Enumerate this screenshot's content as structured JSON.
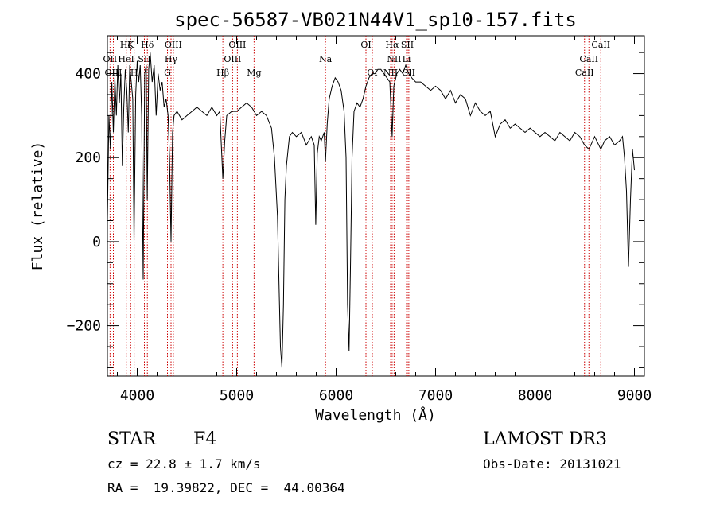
{
  "chart_data": {
    "type": "line",
    "title": "spec-56587-VB021N44V1_sp10-157.fits",
    "xlabel": "Wavelength (Å)",
    "ylabel": "Flux (relative)",
    "xlim": [
      3700,
      9100
    ],
    "ylim": [
      -320,
      490
    ],
    "xticks": [
      4000,
      5000,
      6000,
      7000,
      8000,
      9000
    ],
    "yticks": [
      -200,
      0,
      200,
      400
    ],
    "series": [
      {
        "name": "flux",
        "points": [
          [
            3700,
            50
          ],
          [
            3715,
            300
          ],
          [
            3730,
            220
          ],
          [
            3745,
            380
          ],
          [
            3760,
            260
          ],
          [
            3775,
            390
          ],
          [
            3790,
            300
          ],
          [
            3805,
            420
          ],
          [
            3820,
            330
          ],
          [
            3835,
            400
          ],
          [
            3850,
            180
          ],
          [
            3865,
            320
          ],
          [
            3880,
            410
          ],
          [
            3895,
            360
          ],
          [
            3910,
            260
          ],
          [
            3925,
            420
          ],
          [
            3940,
            380
          ],
          [
            3955,
            340
          ],
          [
            3968,
            0
          ],
          [
            3985,
            350
          ],
          [
            4000,
            430
          ],
          [
            4015,
            380
          ],
          [
            4030,
            420
          ],
          [
            4045,
            300
          ],
          [
            4060,
            -90
          ],
          [
            4075,
            400
          ],
          [
            4090,
            420
          ],
          [
            4101,
            100
          ],
          [
            4115,
            410
          ],
          [
            4130,
            450
          ],
          [
            4150,
            380
          ],
          [
            4170,
            420
          ],
          [
            4190,
            300
          ],
          [
            4210,
            400
          ],
          [
            4230,
            360
          ],
          [
            4250,
            380
          ],
          [
            4270,
            320
          ],
          [
            4290,
            340
          ],
          [
            4310,
            300
          ],
          [
            4325,
            200
          ],
          [
            4340,
            0
          ],
          [
            4355,
            260
          ],
          [
            4370,
            300
          ],
          [
            4400,
            310
          ],
          [
            4450,
            290
          ],
          [
            4500,
            300
          ],
          [
            4550,
            310
          ],
          [
            4600,
            320
          ],
          [
            4650,
            310
          ],
          [
            4700,
            300
          ],
          [
            4750,
            320
          ],
          [
            4800,
            300
          ],
          [
            4830,
            310
          ],
          [
            4861,
            150
          ],
          [
            4880,
            240
          ],
          [
            4900,
            300
          ],
          [
            4950,
            310
          ],
          [
            5000,
            310
          ],
          [
            5050,
            320
          ],
          [
            5100,
            330
          ],
          [
            5150,
            320
          ],
          [
            5200,
            300
          ],
          [
            5250,
            310
          ],
          [
            5300,
            300
          ],
          [
            5350,
            270
          ],
          [
            5380,
            200
          ],
          [
            5410,
            60
          ],
          [
            5440,
            -250
          ],
          [
            5455,
            -300
          ],
          [
            5470,
            -150
          ],
          [
            5485,
            100
          ],
          [
            5500,
            180
          ],
          [
            5530,
            250
          ],
          [
            5560,
            260
          ],
          [
            5600,
            250
          ],
          [
            5650,
            260
          ],
          [
            5700,
            230
          ],
          [
            5750,
            250
          ],
          [
            5780,
            230
          ],
          [
            5795,
            40
          ],
          [
            5810,
            210
          ],
          [
            5830,
            250
          ],
          [
            5850,
            240
          ],
          [
            5880,
            260
          ],
          [
            5893,
            190
          ],
          [
            5910,
            280
          ],
          [
            5930,
            340
          ],
          [
            5960,
            370
          ],
          [
            5990,
            390
          ],
          [
            6020,
            380
          ],
          [
            6050,
            360
          ],
          [
            6080,
            310
          ],
          [
            6100,
            200
          ],
          [
            6115,
            -150
          ],
          [
            6130,
            -260
          ],
          [
            6145,
            -50
          ],
          [
            6160,
            200
          ],
          [
            6180,
            310
          ],
          [
            6210,
            330
          ],
          [
            6240,
            320
          ],
          [
            6270,
            340
          ],
          [
            6300,
            370
          ],
          [
            6330,
            390
          ],
          [
            6360,
            400
          ],
          [
            6390,
            400
          ],
          [
            6420,
            410
          ],
          [
            6450,
            410
          ],
          [
            6480,
            400
          ],
          [
            6510,
            390
          ],
          [
            6540,
            380
          ],
          [
            6563,
            250
          ],
          [
            6580,
            370
          ],
          [
            6610,
            400
          ],
          [
            6640,
            410
          ],
          [
            6670,
            400
          ],
          [
            6700,
            420
          ],
          [
            6730,
            400
          ],
          [
            6760,
            390
          ],
          [
            6800,
            380
          ],
          [
            6850,
            380
          ],
          [
            6900,
            370
          ],
          [
            6950,
            360
          ],
          [
            7000,
            370
          ],
          [
            7050,
            360
          ],
          [
            7100,
            340
          ],
          [
            7150,
            360
          ],
          [
            7200,
            330
          ],
          [
            7250,
            350
          ],
          [
            7300,
            340
          ],
          [
            7350,
            300
          ],
          [
            7400,
            330
          ],
          [
            7450,
            310
          ],
          [
            7500,
            300
          ],
          [
            7550,
            310
          ],
          [
            7600,
            250
          ],
          [
            7650,
            280
          ],
          [
            7700,
            290
          ],
          [
            7750,
            270
          ],
          [
            7800,
            280
          ],
          [
            7850,
            270
          ],
          [
            7900,
            260
          ],
          [
            7950,
            270
          ],
          [
            8000,
            260
          ],
          [
            8050,
            250
          ],
          [
            8100,
            260
          ],
          [
            8150,
            250
          ],
          [
            8200,
            240
          ],
          [
            8250,
            260
          ],
          [
            8300,
            250
          ],
          [
            8350,
            240
          ],
          [
            8400,
            260
          ],
          [
            8450,
            250
          ],
          [
            8498,
            230
          ],
          [
            8542,
            220
          ],
          [
            8600,
            250
          ],
          [
            8662,
            220
          ],
          [
            8700,
            240
          ],
          [
            8750,
            250
          ],
          [
            8800,
            230
          ],
          [
            8850,
            240
          ],
          [
            8880,
            250
          ],
          [
            8900,
            200
          ],
          [
            8920,
            120
          ],
          [
            8940,
            -60
          ],
          [
            8960,
            100
          ],
          [
            8980,
            220
          ],
          [
            9000,
            170
          ]
        ]
      }
    ],
    "lines": [
      {
        "label": "Hζ",
        "x": 3889,
        "row": 0
      },
      {
        "label": "K",
        "x": 3934,
        "row": 0
      },
      {
        "label": "Hδ",
        "x": 4102,
        "row": 0
      },
      {
        "label": "OIII",
        "x": 4363,
        "row": 0
      },
      {
        "label": "OIII",
        "x": 5007,
        "row": 0
      },
      {
        "label": "OI",
        "x": 6300,
        "row": 0
      },
      {
        "label": "Hα",
        "x": 6563,
        "row": 0
      },
      {
        "label": "SII",
        "x": 6716,
        "row": 0
      },
      {
        "label": "CaII",
        "x": 8662,
        "row": 0
      },
      {
        "label": "OII",
        "x": 3727,
        "row": 1
      },
      {
        "label": "HeI",
        "x": 3889,
        "row": 1
      },
      {
        "label": "SII",
        "x": 4072,
        "row": 1
      },
      {
        "label": "Hγ",
        "x": 4340,
        "row": 1
      },
      {
        "label": "OIII",
        "x": 4959,
        "row": 1
      },
      {
        "label": "Na",
        "x": 5893,
        "row": 1
      },
      {
        "label": "NII",
        "x": 6583,
        "row": 1
      },
      {
        "label": "Li",
        "x": 6708,
        "row": 1
      },
      {
        "label": "CaII",
        "x": 8542,
        "row": 1
      },
      {
        "label": "OIII",
        "x": 3760,
        "row": 2
      },
      {
        "label": "H",
        "x": 3969,
        "row": 2
      },
      {
        "label": "G",
        "x": 4304,
        "row": 2
      },
      {
        "label": "Hβ",
        "x": 4861,
        "row": 2
      },
      {
        "label": "Mg",
        "x": 5175,
        "row": 2
      },
      {
        "label": "OI",
        "x": 6364,
        "row": 2
      },
      {
        "label": "NII",
        "x": 6548,
        "row": 2
      },
      {
        "label": "SII",
        "x": 6731,
        "row": 2
      },
      {
        "label": "CaII",
        "x": 8498,
        "row": 2
      }
    ]
  },
  "info": {
    "class_label": "STAR",
    "subclass": "F4",
    "survey": "LAMOST DR3",
    "cz": "cz = 22.8 ± 1.7 km/s",
    "obs_date": "Obs-Date: 20131021",
    "coords": "RA =  19.39822, DEC =  44.00364"
  },
  "colors": {
    "spectrum": "#000000",
    "line_markers": "#cc0000"
  }
}
